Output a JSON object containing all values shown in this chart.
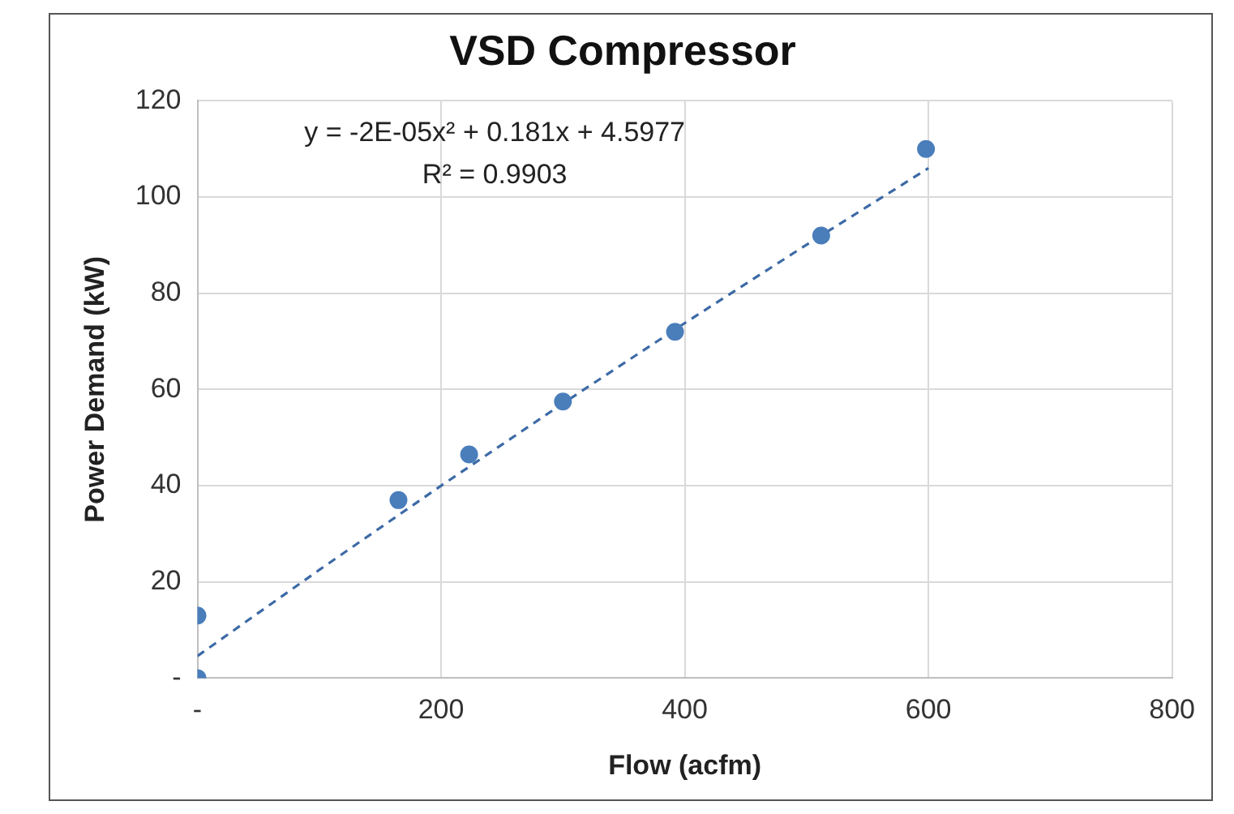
{
  "chart_data": {
    "type": "scatter",
    "title": "VSD Compressor",
    "xlabel": "Flow (acfm)",
    "ylabel": "Power Demand (kW)",
    "x": [
      0,
      0,
      165,
      223,
      300,
      392,
      512,
      598
    ],
    "series": [
      {
        "color": "#4a7ebb",
        "marker": "circle",
        "values": [
          13,
          0,
          37,
          46.5,
          57.5,
          72,
          92,
          110
        ]
      },
      {
        "type": "line",
        "color": "#3d6aa6",
        "line_style": "dashed",
        "marker": "none",
        "x": [
          0,
          100,
          200,
          300,
          400,
          500,
          600
        ],
        "values": [
          4.6,
          22.5,
          40,
          57.1,
          73.8,
          90.1,
          106
        ]
      }
    ],
    "xlim": [
      0,
      800
    ],
    "xticks": [
      {
        "value": 0,
        "label": "-"
      },
      200,
      400,
      600,
      800
    ],
    "ylim": [
      0,
      120
    ],
    "yticks": [
      {
        "value": 0,
        "label": "-"
      },
      20,
      40,
      60,
      80,
      100,
      120
    ],
    "grid": true,
    "legend": false,
    "annotations": [
      "y = -2E-05x² + 0.181x + 4.5977",
      "R² = 0.9903"
    ]
  }
}
